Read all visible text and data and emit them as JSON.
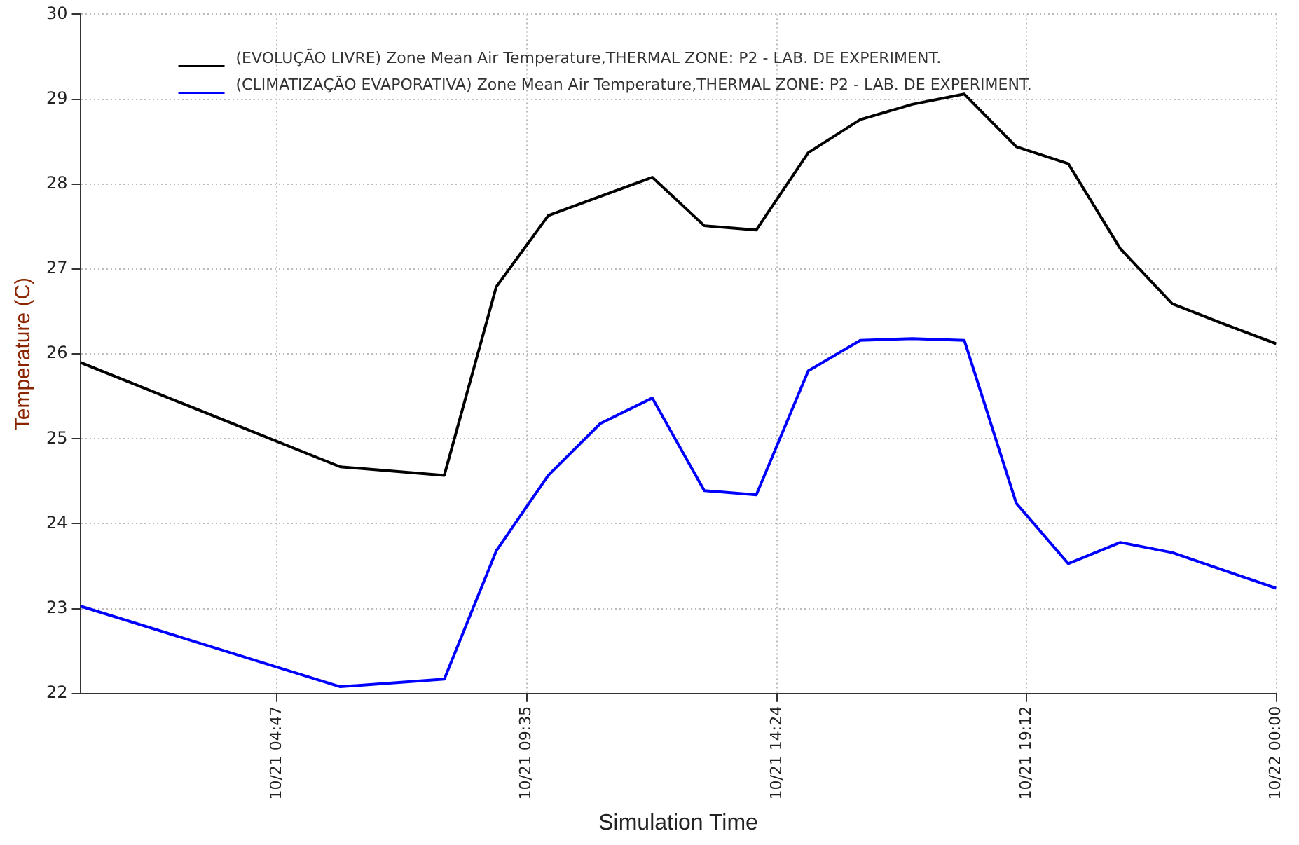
{
  "chart_data": {
    "type": "line",
    "xlabel": "Simulation Time",
    "ylabel": "Temperature (C)",
    "xlim": [
      "--10-21T01:00",
      "--10-22T00:00"
    ],
    "xticks": [
      {
        "value": "--10-21T04:47",
        "label": "10/21 04:47"
      },
      {
        "value": "--10-21T09:35",
        "label": "10/21 09:35"
      },
      {
        "value": "--10-21T14:24",
        "label": "10/21 14:24"
      },
      {
        "value": "--10-21T19:12",
        "label": "10/21 19:12"
      },
      {
        "value": "--10-22T00:00",
        "label": "10/22 00:00"
      }
    ],
    "ylim": [
      22,
      30
    ],
    "yticks": [
      22,
      23,
      24,
      25,
      26,
      27,
      28,
      29,
      30
    ],
    "grid": true,
    "legend": "top left",
    "marker": "none",
    "line_style": "solid",
    "series": [
      {
        "name": "(EVOLUÇÃO LIVRE) Zone Mean Air Temperature,THERMAL ZONE: P2 - LAB. DE EXPERIMENT.",
        "color": "#000000",
        "x": [
          "--10-21T01:00",
          "--10-21T06:00",
          "--10-21T08:00",
          "--10-21T09:00",
          "--10-21T10:00",
          "--10-21T12:00",
          "--10-21T13:00",
          "--10-21T14:00",
          "--10-21T15:00",
          "--10-21T16:00",
          "--10-21T17:00",
          "--10-21T18:00",
          "--10-21T19:00",
          "--10-21T20:00",
          "--10-21T21:00",
          "--10-21T22:00",
          "--10-21T23:00",
          "--10-22T00:00"
        ],
        "values": [
          25.9,
          24.67,
          24.57,
          26.79,
          27.63,
          28.08,
          27.51,
          27.46,
          28.37,
          28.76,
          28.94,
          29.06,
          28.44,
          28.24,
          27.24,
          26.59,
          26.35,
          26.12
        ]
      },
      {
        "name": "(CLIMATIZAÇÃO EVAPORATIVA) Zone Mean Air Temperature,THERMAL ZONE: P2 - LAB. DE EXPERIMENT.",
        "color": "#0000ff",
        "x": [
          "--10-21T01:00",
          "--10-21T06:00",
          "--10-21T08:00",
          "--10-21T09:00",
          "--10-21T10:00",
          "--10-21T11:00",
          "--10-21T12:00",
          "--10-21T13:00",
          "--10-21T14:00",
          "--10-21T15:00",
          "--10-21T16:00",
          "--10-21T17:00",
          "--10-21T18:00",
          "--10-21T19:00",
          "--10-21T20:00",
          "--10-21T21:00",
          "--10-21T22:00",
          "--10-22T00:00"
        ],
        "values": [
          23.03,
          22.08,
          22.17,
          23.68,
          24.57,
          25.18,
          25.48,
          24.39,
          24.34,
          25.8,
          26.16,
          26.18,
          26.16,
          24.24,
          23.53,
          23.78,
          23.66,
          23.24
        ]
      }
    ]
  }
}
